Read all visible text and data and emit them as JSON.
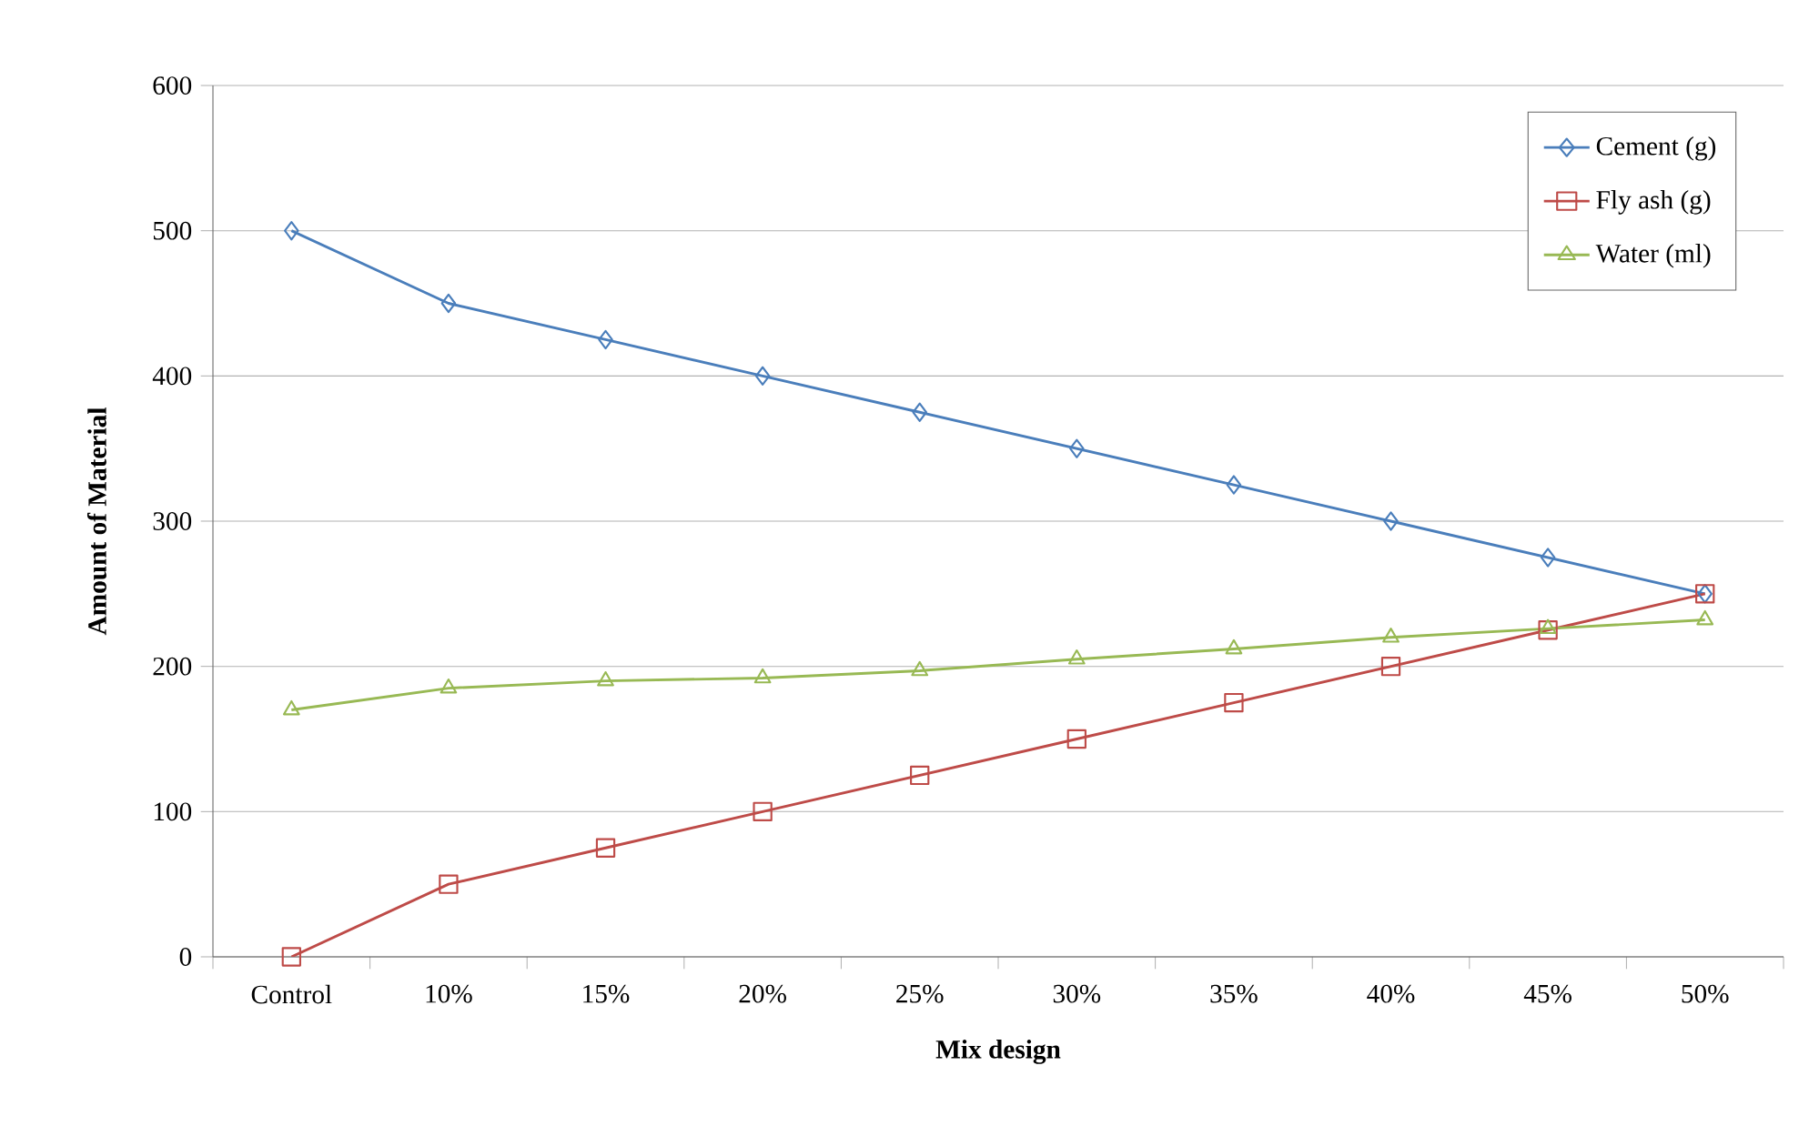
{
  "chart_data": {
    "type": "line",
    "xlabel": "Mix design",
    "ylabel": "Amount of Material",
    "categories": [
      "Control",
      "10%",
      "15%",
      "20%",
      "25%",
      "30%",
      "35%",
      "40%",
      "45%",
      "50%"
    ],
    "series": [
      {
        "name": "Cement (g)",
        "color": "#4a7ebb",
        "marker": "diamond",
        "values": [
          500,
          450,
          425,
          400,
          375,
          350,
          325,
          300,
          275,
          250
        ]
      },
      {
        "name": "Fly ash (g)",
        "color": "#be4b48",
        "marker": "square",
        "values": [
          0,
          50,
          75,
          100,
          125,
          150,
          175,
          200,
          225,
          250
        ]
      },
      {
        "name": "Water (ml)",
        "color": "#98b954",
        "marker": "triangle",
        "values": [
          170,
          185,
          190,
          192,
          197,
          205,
          212,
          220,
          226,
          232
        ]
      }
    ],
    "ylim": [
      0,
      600
    ],
    "yticks": [
      0,
      100,
      200,
      300,
      400,
      500,
      600
    ],
    "grid": "y",
    "legend": "top right",
    "line_style": "solid"
  }
}
